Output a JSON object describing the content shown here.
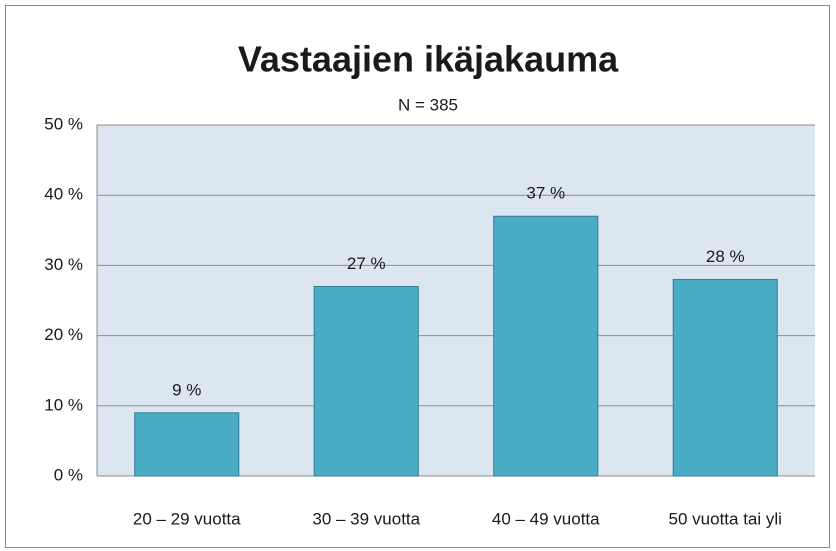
{
  "chart_data": {
    "type": "bar",
    "title": "Vastaajien ikäjakauma",
    "subtitle": "N = 385",
    "categories": [
      "20 – 29 vuotta",
      "30 – 39 vuotta",
      "40 – 49 vuotta",
      "50 vuotta tai yli"
    ],
    "values": [
      9,
      27,
      37,
      28
    ],
    "value_labels": [
      "9 %",
      "27 %",
      "37 %",
      "28 %"
    ],
    "color": "#4bacc6",
    "ylim": [
      0,
      50
    ],
    "yticks": [
      {
        "value": 0,
        "label": "0 %"
      },
      {
        "value": 10,
        "label": "10 %"
      },
      {
        "value": 20,
        "label": "20 %"
      },
      {
        "value": 30,
        "label": "30 %"
      },
      {
        "value": 40,
        "label": "40 %"
      },
      {
        "value": 50,
        "label": "50 %"
      }
    ],
    "grid": true
  }
}
